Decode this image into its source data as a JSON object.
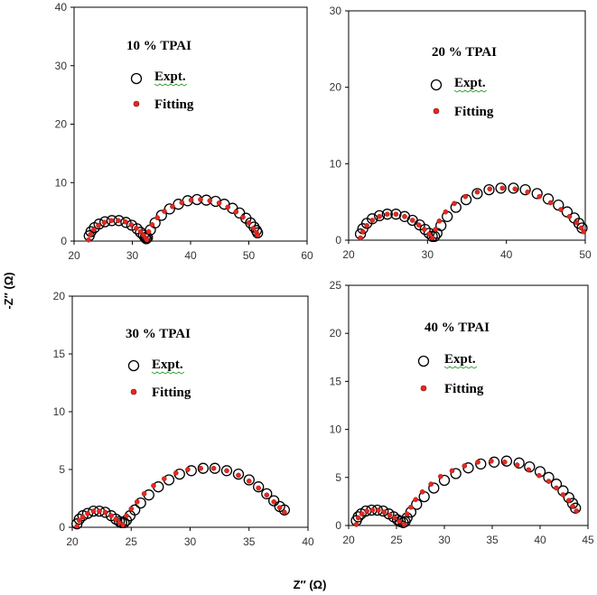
{
  "figure": {
    "y_axis_title": "-Z″ (Ω)",
    "x_axis_title": "Z′′ (Ω)"
  },
  "chart_data": [
    {
      "type": "scatter",
      "title": "10 % TPAI",
      "xlim": [
        20,
        60
      ],
      "ylim": [
        0,
        40
      ],
      "xticks": [
        20,
        30,
        40,
        50,
        60
      ],
      "yticks": [
        0,
        10,
        20,
        30,
        40
      ],
      "legend": [
        "Expt.",
        "Fitting"
      ],
      "legend_position": "top-left",
      "arcs": [
        [
          22.5,
          32.5,
          3.6
        ],
        [
          32.5,
          51.5,
          7.1
        ]
      ],
      "series": [
        {
          "name": "Expt.",
          "marker": "open-circle",
          "x": [
            22.6,
            22.9,
            23.5,
            24.3,
            25.3,
            26.5,
            27.7,
            28.9,
            29.9,
            30.8,
            31.4,
            31.9,
            32.2,
            32.4,
            32.6,
            33.1,
            33.9,
            35.0,
            36.4,
            37.9,
            39.5,
            41.1,
            42.7,
            44.3,
            45.8,
            47.2,
            48.4,
            49.5,
            50.3,
            50.9,
            51.3,
            51.5
          ],
          "y": [
            0.9,
            1.6,
            2.3,
            2.9,
            3.3,
            3.5,
            3.5,
            3.2,
            2.7,
            2.1,
            1.5,
            1.0,
            0.6,
            0.4,
            0.6,
            1.9,
            3.1,
            4.4,
            5.5,
            6.3,
            6.9,
            7.1,
            7.0,
            6.8,
            6.3,
            5.6,
            4.8,
            3.9,
            3.1,
            2.4,
            1.8,
            1.4
          ]
        },
        {
          "name": "Fitting",
          "marker": "filled-dot",
          "x": [
            22.5,
            22.8,
            23.4,
            24.2,
            25.2,
            26.4,
            27.6,
            28.8,
            29.8,
            30.7,
            31.4,
            31.9,
            32.3,
            32.5,
            32.8,
            33.4,
            34.3,
            35.5,
            36.9,
            38.5,
            40.1,
            41.7,
            43.3,
            44.9,
            46.4,
            47.8,
            49.0,
            50.0,
            50.8,
            51.3,
            51.5
          ],
          "y": [
            0.2,
            1.1,
            2.0,
            2.7,
            3.2,
            3.5,
            3.5,
            3.3,
            2.8,
            2.2,
            1.6,
            1.0,
            0.5,
            0.2,
            1.6,
            2.8,
            4.0,
            5.1,
            5.9,
            6.6,
            7.0,
            7.1,
            6.9,
            6.5,
            5.8,
            5.0,
            4.1,
            3.1,
            2.2,
            1.5,
            1.0
          ]
        }
      ]
    },
    {
      "type": "scatter",
      "title": "20 % TPAI",
      "xlim": [
        20,
        50
      ],
      "ylim": [
        0,
        30
      ],
      "xticks": [
        20,
        30,
        40,
        50
      ],
      "yticks": [
        0,
        10,
        20,
        30
      ],
      "legend": [
        "Expt.",
        "Fitting"
      ],
      "legend_position": "top-right",
      "arcs": [
        [
          21.5,
          30.8,
          3.4
        ],
        [
          30.8,
          49.8,
          6.8
        ]
      ],
      "series": [
        {
          "name": "Expt.",
          "marker": "open-circle",
          "x": [
            21.5,
            21.8,
            22.3,
            23.0,
            23.9,
            24.9,
            26.0,
            27.1,
            28.1,
            29.0,
            29.7,
            30.2,
            30.6,
            30.9,
            31.2,
            31.7,
            32.5,
            33.6,
            34.9,
            36.3,
            37.8,
            39.3,
            40.9,
            42.4,
            43.9,
            45.3,
            46.6,
            47.7,
            48.6,
            49.2,
            49.6
          ],
          "y": [
            0.8,
            1.5,
            2.2,
            2.8,
            3.2,
            3.4,
            3.4,
            3.1,
            2.6,
            2.0,
            1.4,
            0.9,
            0.5,
            0.5,
            0.9,
            1.9,
            3.1,
            4.3,
            5.3,
            6.1,
            6.6,
            6.8,
            6.8,
            6.6,
            6.1,
            5.4,
            4.6,
            3.7,
            2.9,
            2.2,
            1.6
          ]
        },
        {
          "name": "Fitting",
          "marker": "filled-dot",
          "x": [
            21.5,
            21.8,
            22.3,
            23.0,
            23.9,
            24.9,
            26.0,
            27.1,
            28.1,
            28.9,
            29.6,
            30.2,
            30.6,
            31.0,
            31.5,
            32.3,
            33.4,
            34.8,
            36.3,
            37.9,
            39.5,
            41.1,
            42.7,
            44.2,
            45.6,
            46.9,
            48.0,
            48.9,
            49.5,
            49.8
          ],
          "y": [
            0.3,
            1.1,
            1.9,
            2.6,
            3.1,
            3.4,
            3.4,
            3.1,
            2.6,
            2.0,
            1.4,
            0.8,
            0.3,
            1.4,
            2.5,
            3.7,
            4.8,
            5.7,
            6.3,
            6.7,
            6.8,
            6.7,
            6.3,
            5.7,
            4.9,
            4.0,
            3.1,
            2.3,
            1.6,
            1.1
          ]
        }
      ]
    },
    {
      "type": "scatter",
      "title": "30 % TPAI",
      "xlim": [
        20,
        40
      ],
      "ylim": [
        0,
        20
      ],
      "xticks": [
        20,
        25,
        30,
        35,
        40
      ],
      "yticks": [
        0,
        5,
        10,
        15,
        20
      ],
      "legend": [
        "Expt.",
        "Fitting"
      ],
      "legend_position": "top-left",
      "arcs": [
        [
          20.4,
          24.3,
          1.4
        ],
        [
          24.3,
          38.0,
          5.1
        ]
      ],
      "series": [
        {
          "name": "Expt.",
          "marker": "open-circle",
          "x": [
            20.4,
            20.6,
            20.9,
            21.3,
            21.8,
            22.3,
            22.8,
            23.3,
            23.7,
            24.0,
            24.2,
            24.4,
            24.6,
            24.9,
            25.3,
            25.8,
            26.5,
            27.3,
            28.2,
            29.1,
            30.1,
            31.1,
            32.1,
            33.1,
            34.1,
            35.0,
            35.8,
            36.5,
            37.1,
            37.6,
            38.0
          ],
          "y": [
            0.3,
            0.7,
            1.0,
            1.2,
            1.4,
            1.4,
            1.3,
            1.0,
            0.7,
            0.5,
            0.4,
            0.4,
            0.6,
            1.0,
            1.5,
            2.1,
            2.8,
            3.5,
            4.1,
            4.6,
            4.9,
            5.1,
            5.1,
            4.9,
            4.6,
            4.1,
            3.5,
            2.9,
            2.3,
            1.8,
            1.5
          ]
        },
        {
          "name": "Fitting",
          "marker": "filled-dot",
          "x": [
            20.4,
            20.6,
            20.9,
            21.3,
            21.8,
            22.3,
            22.8,
            23.3,
            23.7,
            24.0,
            24.3,
            24.6,
            25.0,
            25.5,
            26.1,
            26.9,
            27.8,
            28.8,
            29.8,
            30.9,
            32.0,
            33.1,
            34.1,
            35.0,
            35.8,
            36.5,
            37.1,
            37.6,
            38.0
          ],
          "y": [
            0.1,
            0.6,
            0.9,
            1.2,
            1.4,
            1.4,
            1.3,
            1.0,
            0.7,
            0.4,
            0.2,
            1.0,
            1.6,
            2.2,
            2.9,
            3.6,
            4.2,
            4.7,
            5.0,
            5.1,
            5.1,
            4.9,
            4.5,
            4.0,
            3.4,
            2.8,
            2.2,
            1.7,
            1.3
          ]
        }
      ]
    },
    {
      "type": "scatter",
      "title": "40 % TPAI",
      "xlim": [
        20,
        45
      ],
      "ylim": [
        0,
        25
      ],
      "xticks": [
        20,
        25,
        30,
        35,
        40,
        45
      ],
      "yticks": [
        0,
        5,
        10,
        15,
        20,
        25
      ],
      "legend": [
        "Expt.",
        "Fitting"
      ],
      "legend_position": "top-right",
      "arcs": [
        [
          20.8,
          25.8,
          1.6
        ],
        [
          25.8,
          43.8,
          6.7
        ]
      ],
      "series": [
        {
          "name": "Expt.",
          "marker": "open-circle",
          "x": [
            20.8,
            21.0,
            21.3,
            21.8,
            22.4,
            23.0,
            23.6,
            24.2,
            24.7,
            25.1,
            25.4,
            25.7,
            25.9,
            26.1,
            26.5,
            27.1,
            27.9,
            28.9,
            30.0,
            31.2,
            32.5,
            33.8,
            35.2,
            36.5,
            37.8,
            38.9,
            40.0,
            40.9,
            41.7,
            42.4,
            43.0,
            43.4,
            43.7
          ],
          "y": [
            0.5,
            0.9,
            1.2,
            1.5,
            1.6,
            1.6,
            1.5,
            1.2,
            0.9,
            0.6,
            0.4,
            0.3,
            0.4,
            0.8,
            1.4,
            2.2,
            3.0,
            3.9,
            4.7,
            5.4,
            6.0,
            6.4,
            6.6,
            6.7,
            6.5,
            6.1,
            5.6,
            5.0,
            4.3,
            3.6,
            2.9,
            2.3,
            1.8
          ]
        },
        {
          "name": "Fitting",
          "marker": "filled-dot",
          "x": [
            20.8,
            21.0,
            21.4,
            21.9,
            22.5,
            23.1,
            23.7,
            24.3,
            24.8,
            25.3,
            25.8,
            26.1,
            26.5,
            27.0,
            27.7,
            28.6,
            29.6,
            30.8,
            32.1,
            33.5,
            34.9,
            36.3,
            37.6,
            38.8,
            39.9,
            40.9,
            41.7,
            42.4,
            43.0,
            43.4,
            43.8
          ],
          "y": [
            0.1,
            0.8,
            1.2,
            1.5,
            1.6,
            1.6,
            1.4,
            1.1,
            0.8,
            0.4,
            0.1,
            1.2,
            1.9,
            2.7,
            3.5,
            4.3,
            5.1,
            5.7,
            6.2,
            6.6,
            6.7,
            6.6,
            6.3,
            5.8,
            5.2,
            4.6,
            3.9,
            3.2,
            2.6,
            2.0,
            1.5
          ]
        }
      ]
    }
  ]
}
